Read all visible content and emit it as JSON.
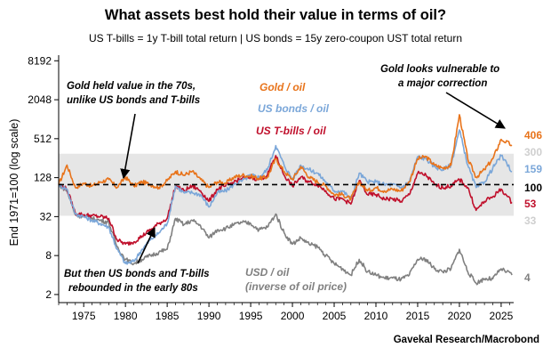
{
  "chart_data": {
    "type": "line",
    "title": "What assets best hold their value in terms of oil?",
    "subtitle": "US T-bills = 1y T-bill total return  |  US bonds = 15y zero-coupon UST total return",
    "ylabel": "End 1971=100 (log scale)",
    "yscale": "log2",
    "ylim": [
      1.5,
      10000
    ],
    "xlim": [
      1972,
      2026.5
    ],
    "yticks": [
      2,
      8,
      32,
      128,
      512,
      2048,
      8192
    ],
    "xticks": [
      1975,
      1980,
      1985,
      1990,
      1995,
      2000,
      2005,
      2010,
      2015,
      2020,
      2025
    ],
    "band": [
      33,
      300
    ],
    "reference_line": 100,
    "source": "Gavekal Research/Macrobond",
    "series": [
      {
        "name": "Gold / oil",
        "color": "#e8731a",
        "x": [
          1972,
          1973,
          1974,
          1975,
          1976,
          1977,
          1978,
          1979,
          1980,
          1981,
          1982,
          1983,
          1984,
          1985,
          1986,
          1987,
          1988,
          1989,
          1990,
          1991,
          1992,
          1993,
          1994,
          1995,
          1996,
          1997,
          1998,
          1999,
          2000,
          2001,
          2002,
          2003,
          2004,
          2005,
          2006,
          2007,
          2008,
          2009,
          2010,
          2011,
          2012,
          2013,
          2014,
          2015,
          2016,
          2017,
          2018,
          2019,
          2020,
          2021,
          2022,
          2023,
          2024,
          2025,
          2026.3
        ],
        "values": [
          100,
          200,
          90,
          105,
          95,
          110,
          120,
          90,
          130,
          95,
          110,
          100,
          90,
          115,
          160,
          140,
          160,
          120,
          90,
          110,
          105,
          130,
          140,
          135,
          125,
          130,
          250,
          160,
          120,
          190,
          130,
          110,
          95,
          70,
          70,
          60,
          110,
          80,
          90,
          80,
          85,
          80,
          110,
          250,
          270,
          200,
          180,
          200,
          1200,
          250,
          130,
          170,
          250,
          500,
          406
        ]
      },
      {
        "name": "US bonds / oil",
        "color": "#7ba7d9",
        "x": [
          1972,
          1973,
          1974,
          1975,
          1976,
          1977,
          1978,
          1979,
          1980,
          1981,
          1982,
          1983,
          1984,
          1985,
          1986,
          1987,
          1988,
          1989,
          1990,
          1991,
          1992,
          1993,
          1994,
          1995,
          1996,
          1997,
          1998,
          1999,
          2000,
          2001,
          2002,
          2003,
          2004,
          2005,
          2006,
          2007,
          2008,
          2009,
          2010,
          2011,
          2012,
          2013,
          2014,
          2015,
          2016,
          2017,
          2018,
          2019,
          2020,
          2021,
          2022,
          2023,
          2024,
          2025,
          2026.3
        ],
        "values": [
          100,
          85,
          35,
          32,
          28,
          25,
          22,
          10,
          6,
          6.5,
          10,
          14,
          18,
          25,
          95,
          75,
          75,
          70,
          45,
          75,
          80,
          100,
          115,
          140,
          130,
          170,
          400,
          200,
          120,
          200,
          170,
          150,
          110,
          80,
          80,
          60,
          150,
          110,
          110,
          100,
          100,
          90,
          110,
          270,
          250,
          190,
          170,
          200,
          700,
          200,
          90,
          110,
          180,
          280,
          159
        ]
      },
      {
        "name": "US T-bills / oil",
        "color": "#c0102c",
        "x": [
          1972,
          1973,
          1974,
          1975,
          1976,
          1977,
          1978,
          1979,
          1980,
          1981,
          1982,
          1983,
          1984,
          1985,
          1986,
          1987,
          1988,
          1989,
          1990,
          1991,
          1992,
          1993,
          1994,
          1995,
          1996,
          1997,
          1998,
          1999,
          2000,
          2001,
          2002,
          2003,
          2004,
          2005,
          2006,
          2007,
          2008,
          2009,
          2010,
          2011,
          2012,
          2013,
          2014,
          2015,
          2016,
          2017,
          2018,
          2019,
          2020,
          2021,
          2022,
          2023,
          2024,
          2025,
          2026.3
        ],
        "values": [
          100,
          85,
          36,
          34,
          33,
          32,
          30,
          14,
          12,
          13,
          16,
          20,
          25,
          30,
          95,
          80,
          95,
          80,
          55,
          85,
          95,
          110,
          125,
          130,
          120,
          140,
          280,
          140,
          95,
          130,
          110,
          100,
          80,
          60,
          60,
          50,
          115,
          70,
          70,
          60,
          60,
          55,
          70,
          150,
          140,
          100,
          90,
          95,
          120,
          90,
          40,
          55,
          65,
          85,
          53
        ]
      },
      {
        "name": "USD / oil",
        "color": "#808080",
        "x": [
          1972,
          1973,
          1974,
          1975,
          1976,
          1977,
          1978,
          1979,
          1980,
          1981,
          1982,
          1983,
          1984,
          1985,
          1986,
          1987,
          1988,
          1989,
          1990,
          1991,
          1992,
          1993,
          1994,
          1995,
          1996,
          1997,
          1998,
          1999,
          2000,
          2001,
          2002,
          2003,
          2004,
          2005,
          2006,
          2007,
          2008,
          2009,
          2010,
          2011,
          2012,
          2013,
          2014,
          2015,
          2016,
          2017,
          2018,
          2019,
          2020,
          2021,
          2022,
          2023,
          2024,
          2025,
          2026.3
        ],
        "values": [
          100,
          80,
          34,
          32,
          30,
          28,
          26,
          11,
          7,
          6,
          7,
          8,
          9,
          10,
          30,
          24,
          28,
          23,
          15,
          20,
          21,
          24,
          26,
          25,
          20,
          22,
          35,
          18,
          12,
          15,
          12,
          11,
          8,
          6,
          5,
          4,
          7,
          4.5,
          4,
          3.6,
          3.6,
          3.4,
          4,
          7,
          7,
          5,
          4.5,
          5,
          10,
          4.5,
          3,
          3.5,
          3.5,
          5,
          4
        ]
      }
    ],
    "end_labels": [
      {
        "text": "406",
        "color": "#e8731a",
        "value": 406
      },
      {
        "text": "300",
        "color": "#cfcfcf",
        "value": 300
      },
      {
        "text": "159",
        "color": "#7ba7d9",
        "value": 159
      },
      {
        "text": "100",
        "color": "#000000",
        "value": 100
      },
      {
        "text": "53",
        "color": "#c0102c",
        "value": 53
      },
      {
        "text": "33",
        "color": "#cfcfcf",
        "value": 33
      },
      {
        "text": "4",
        "color": "#808080",
        "value": 4
      }
    ],
    "series_labels": [
      {
        "text": "Gold / oil",
        "color": "#e8731a"
      },
      {
        "text": "US bonds / oil",
        "color": "#7ba7d9"
      },
      {
        "text": "US T-bills / oil",
        "color": "#c0102c"
      },
      {
        "text": "USD / oil",
        "color": "#808080"
      },
      {
        "text": "(inverse of oil price)",
        "color": "#808080"
      }
    ],
    "annotations": [
      {
        "lines": [
          "Gold held value in the 70s,",
          "unlike US bonds and T-bills"
        ]
      },
      {
        "lines": [
          "But then US bonds and T-bills",
          "rebounded in the early 80s"
        ]
      },
      {
        "lines": [
          "Gold looks vulnerable to",
          "a major correction"
        ]
      }
    ]
  }
}
